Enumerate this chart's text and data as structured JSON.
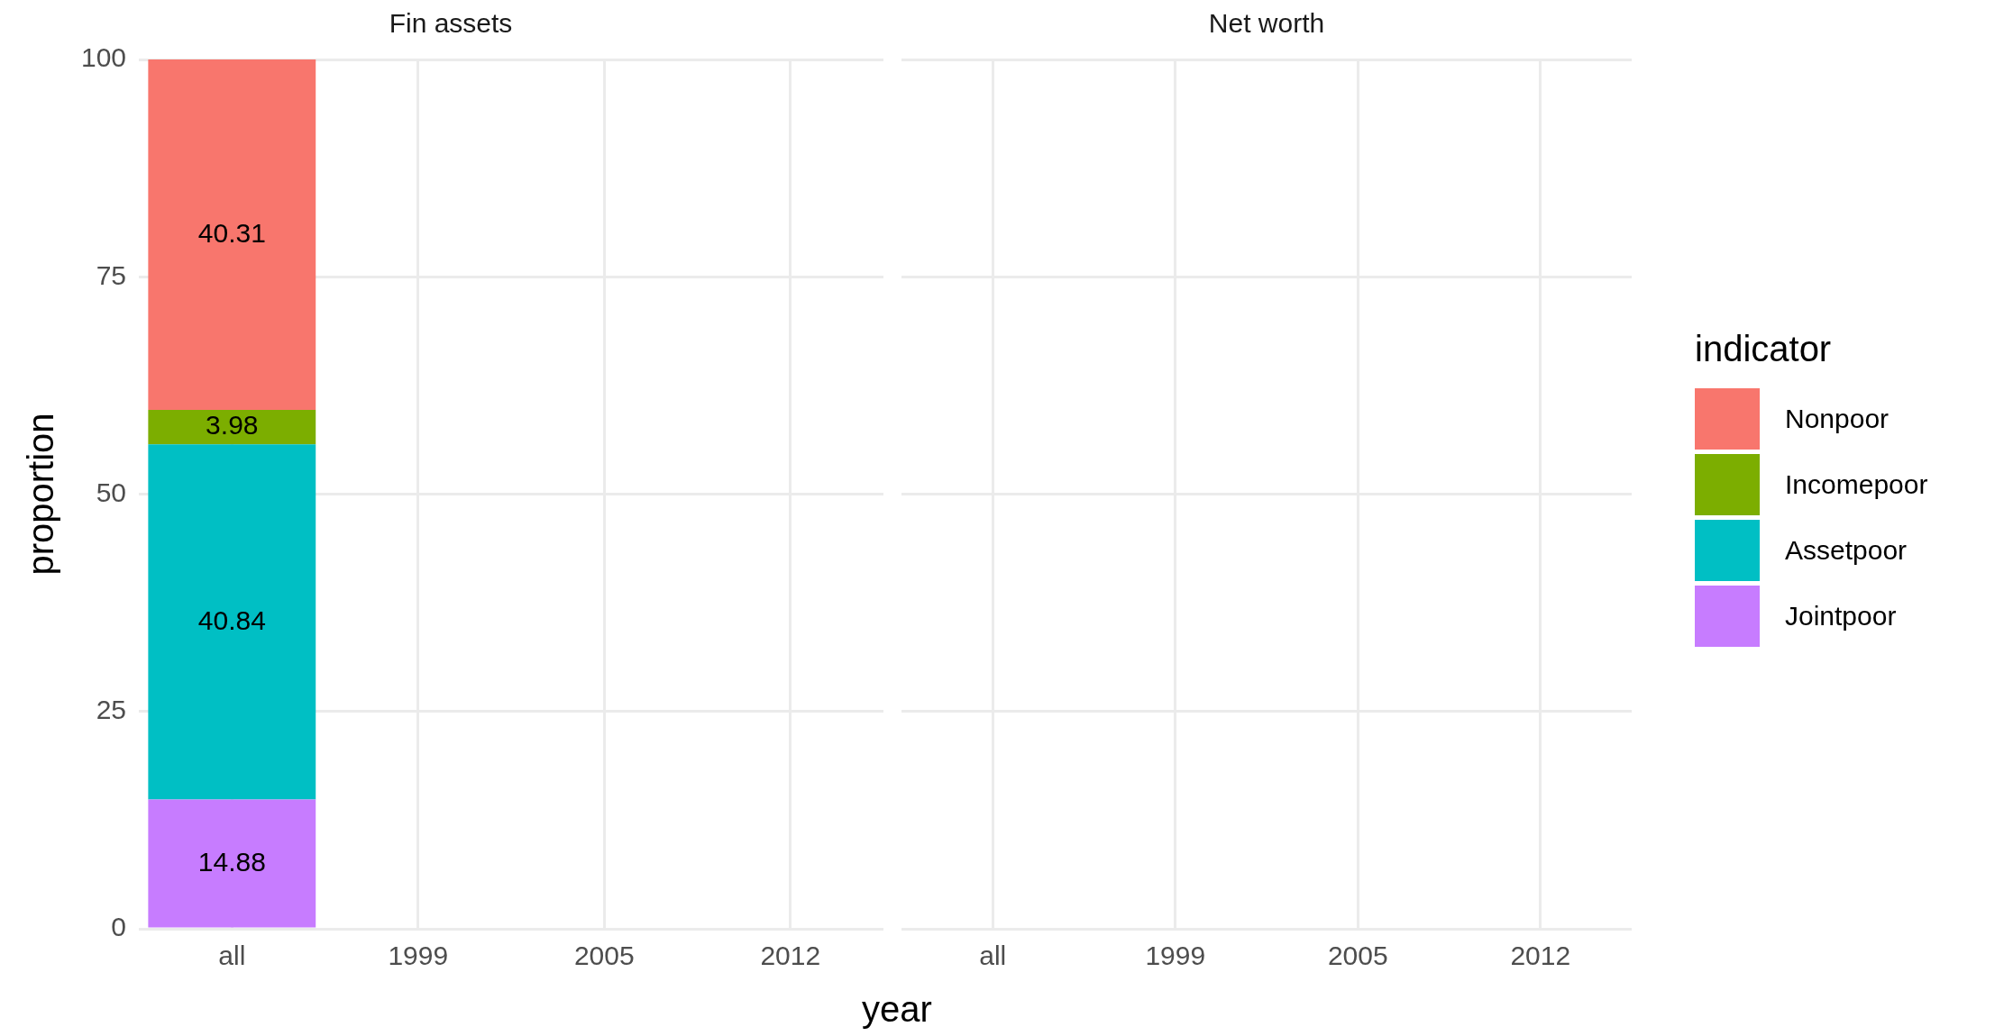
{
  "chart_data": [
    {
      "type": "bar",
      "title": "Fin assets",
      "xlabel": "year",
      "ylabel": "proportion",
      "legend_title": "indicator",
      "legend": "right",
      "stacked": true,
      "data_labels": true,
      "grid": true,
      "categories": [
        "all",
        "1999",
        "2005",
        "2012"
      ],
      "ylim": [
        0,
        100
      ],
      "yticks": [
        0,
        25,
        50,
        75,
        100
      ],
      "series": [
        {
          "name": "Jointpoor",
          "color": "#c77cff",
          "values": [
            14.88,
            null,
            null,
            null
          ]
        },
        {
          "name": "Assetpoor",
          "color": "#00bfc4",
          "values": [
            40.84,
            null,
            null,
            null
          ]
        },
        {
          "name": "Incomepoor",
          "color": "#7cae00",
          "values": [
            3.98,
            null,
            null,
            null
          ]
        },
        {
          "name": "Nonpoor",
          "color": "#f8766d",
          "values": [
            40.31,
            null,
            null,
            null
          ]
        }
      ]
    },
    {
      "type": "bar",
      "title": "Net worth",
      "grid": true,
      "categories": [
        "all",
        "1999",
        "2005",
        "2012"
      ],
      "ylim": [
        0,
        100
      ],
      "yticks": [
        0,
        25,
        50,
        75,
        100
      ],
      "tick_labels": "x"
    }
  ]
}
